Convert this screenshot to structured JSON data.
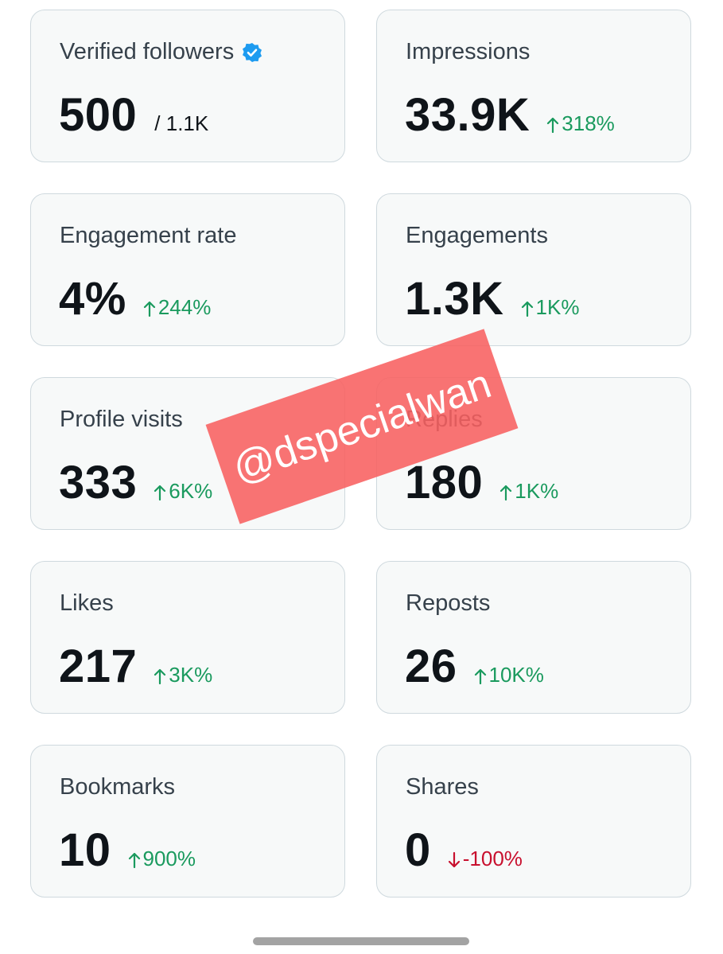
{
  "cards": [
    {
      "label": "Verified followers",
      "value": "500",
      "total": "/ 1.1K"
    },
    {
      "label": "Impressions",
      "value": "33.9K",
      "change": "318%",
      "direction": "up"
    },
    {
      "label": "Engagement rate",
      "value": "4%",
      "change": "244%",
      "direction": "up"
    },
    {
      "label": "Engagements",
      "value": "1.3K",
      "change": "1K%",
      "direction": "up"
    },
    {
      "label": "Profile visits",
      "value": "333",
      "change": "6K%",
      "direction": "up"
    },
    {
      "label": "Replies",
      "value": "180",
      "change": "1K%",
      "direction": "up"
    },
    {
      "label": "Likes",
      "value": "217",
      "change": "3K%",
      "direction": "up"
    },
    {
      "label": "Reposts",
      "value": "26",
      "change": "10K%",
      "direction": "up"
    },
    {
      "label": "Bookmarks",
      "value": "10",
      "change": "900%",
      "direction": "up"
    },
    {
      "label": "Shares",
      "value": "0",
      "change": "-100%",
      "direction": "down"
    }
  ],
  "watermark": "@dspecialwan"
}
